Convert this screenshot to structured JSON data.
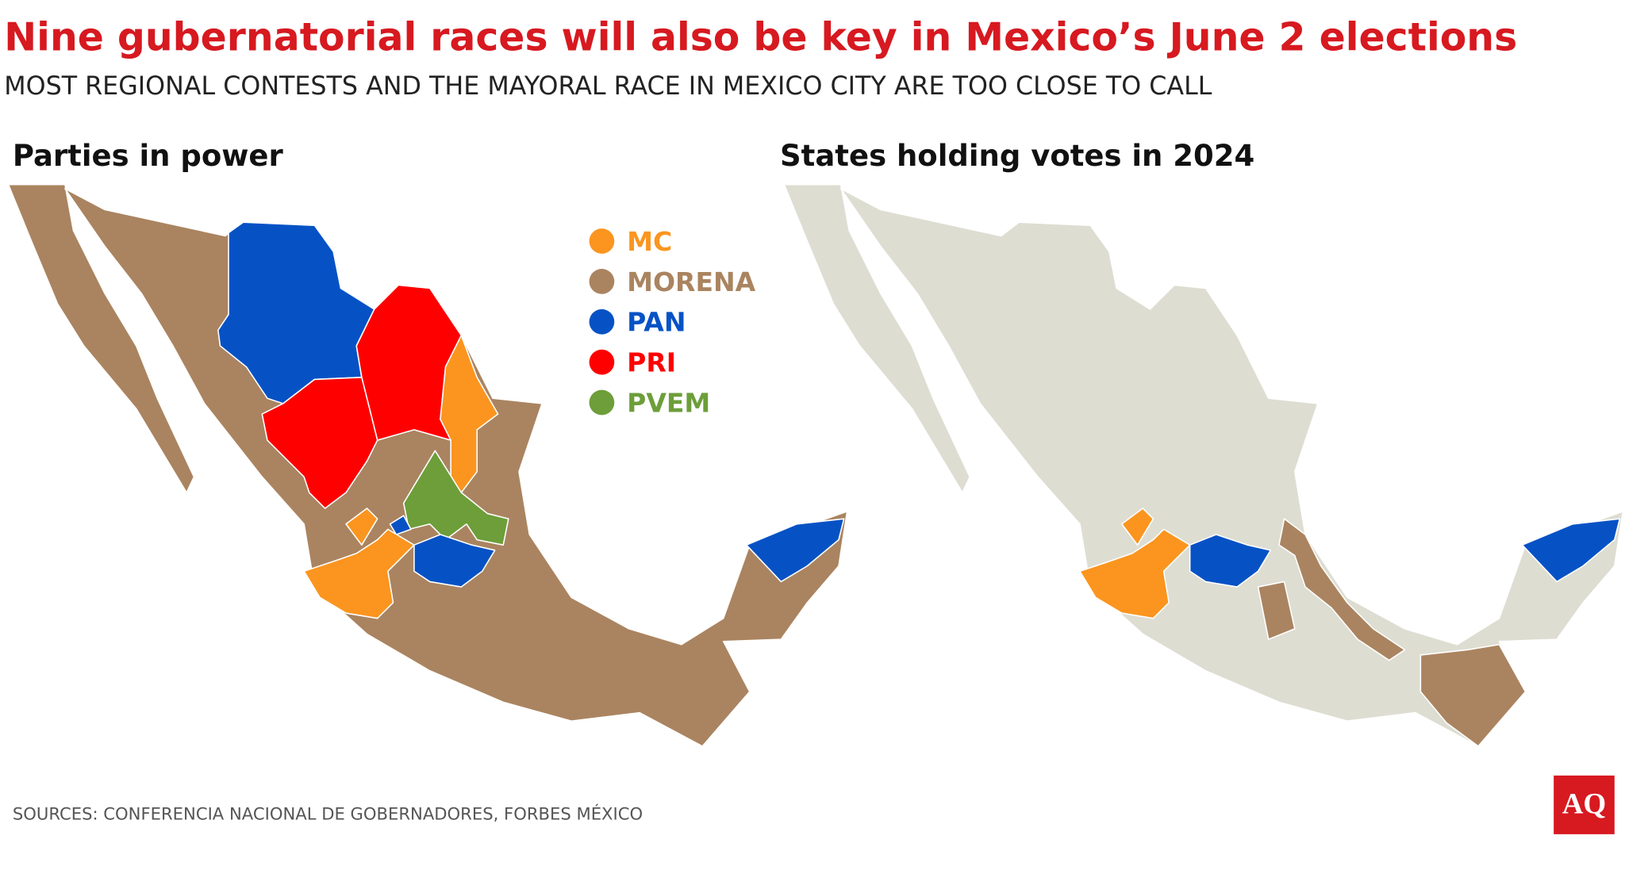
{
  "header": {
    "title": "Nine gubernatorial races will also be key in Mexico’s June 2 elections",
    "subtitle": "MOST REGIONAL CONTESTS AND THE MAYORAL RACE IN MEXICO CITY ARE TOO CLOSE TO CALL"
  },
  "panels": [
    {
      "title": "Parties in power"
    },
    {
      "title": "States holding votes in 2024"
    }
  ],
  "legend": [
    {
      "label": "MC",
      "color": "#fb951f"
    },
    {
      "label": "MORENA",
      "color": "#aa8460"
    },
    {
      "label": "PAN",
      "color": "#0652c5"
    },
    {
      "label": "PRI",
      "color": "#ff0000"
    },
    {
      "label": "PVEM",
      "color": "#6d9e3a"
    }
  ],
  "footer": {
    "source": "SOURCES: CONFERENCIA NACIONAL DE GOBERNADORES, FORBES MÉXICO",
    "logo": "AQ"
  }
}
